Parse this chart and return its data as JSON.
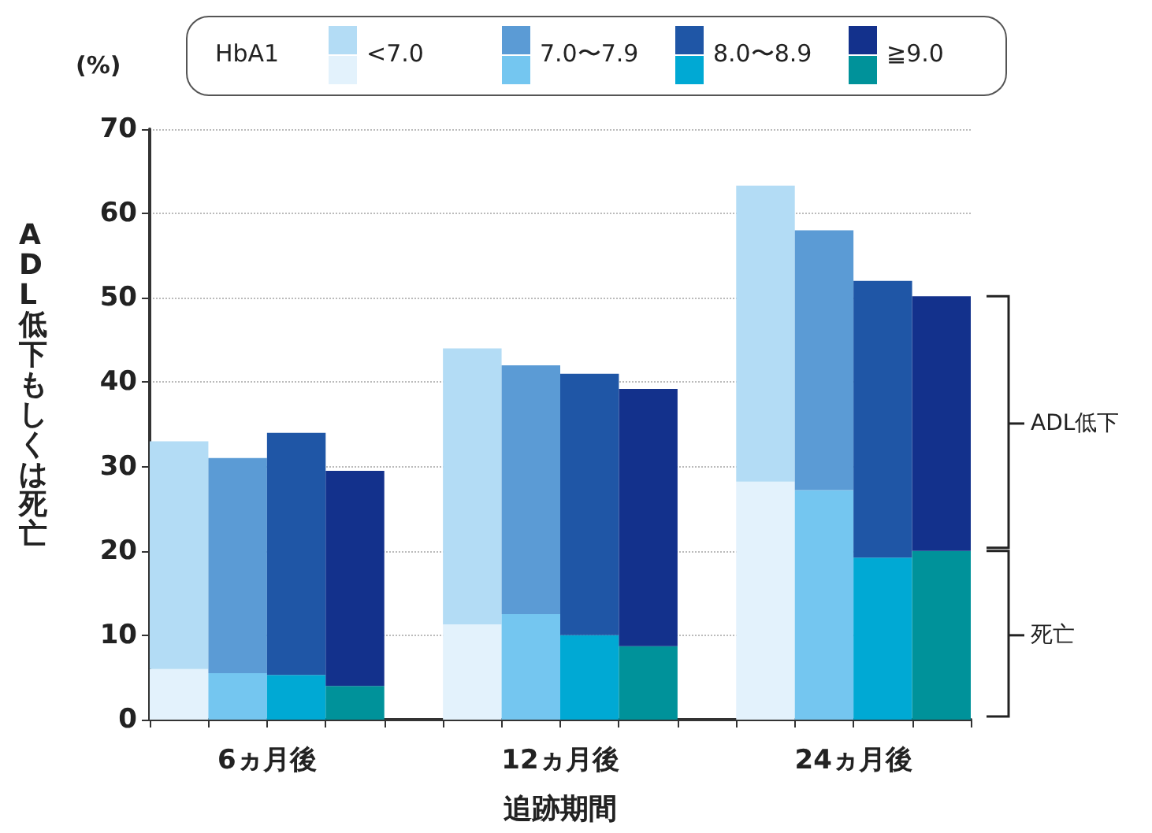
{
  "chart_data": {
    "type": "bar",
    "stacked": true,
    "xlabel": "追跡期間",
    "ylabel": "ADL低下もしくは死亡",
    "legend_title": "HbA1",
    "legend": "top",
    "categories": [
      null,
      null,
      null,
      null,
      null,
      null,
      null,
      null,
      null,
      null,
      null,
      null,
      null,
      null
    ],
    "series": [
      {
        "color": "#e3f2fc",
        "values": [
          6,
          null,
          null,
          null,
          null,
          11.3,
          null,
          null,
          null,
          null,
          28.2,
          null,
          null,
          null
        ]
      },
      {
        "name": "<7.0",
        "color": "#b3dcf5",
        "values": [
          27,
          null,
          null,
          null,
          null,
          32.7,
          null,
          null,
          null,
          null,
          35.1,
          null,
          null,
          null
        ]
      },
      {
        "color": "#74c6f0",
        "values": [
          null,
          5.5,
          null,
          null,
          null,
          null,
          12.5,
          null,
          null,
          null,
          null,
          27.2,
          null,
          null
        ]
      },
      {
        "name": "7.0〜7.9",
        "color": "#5b9bd5",
        "values": [
          null,
          25.5,
          null,
          null,
          null,
          null,
          29.5,
          null,
          null,
          null,
          null,
          30.8,
          null,
          null
        ]
      },
      {
        "color": "#00a9d4",
        "values": [
          null,
          null,
          5.3,
          null,
          null,
          null,
          null,
          10,
          null,
          null,
          null,
          null,
          19.2,
          null
        ]
      },
      {
        "name": "8.0〜8.9",
        "color": "#1f56a6",
        "values": [
          null,
          null,
          28.7,
          null,
          null,
          null,
          null,
          31,
          null,
          null,
          null,
          null,
          32.8,
          null
        ]
      },
      {
        "color": "#00929a",
        "values": [
          null,
          null,
          null,
          4,
          null,
          null,
          null,
          null,
          8.7,
          null,
          null,
          null,
          null,
          20
        ]
      },
      {
        "name": "≧9.0",
        "color": "#13318c",
        "values": [
          null,
          null,
          null,
          25.5,
          null,
          null,
          null,
          null,
          30.5,
          null,
          null,
          null,
          null,
          30.2
        ]
      }
    ],
    "ylim": [
      0,
      70
    ],
    "yticks": [
      0,
      10,
      20,
      30,
      40,
      50,
      60,
      70
    ],
    "grid": "y",
    "annotations": [
      "(%)",
      "ADL低下",
      "死亡",
      "6ヵ月後",
      "12ヵ月後",
      "24ヵ月後"
    ]
  }
}
